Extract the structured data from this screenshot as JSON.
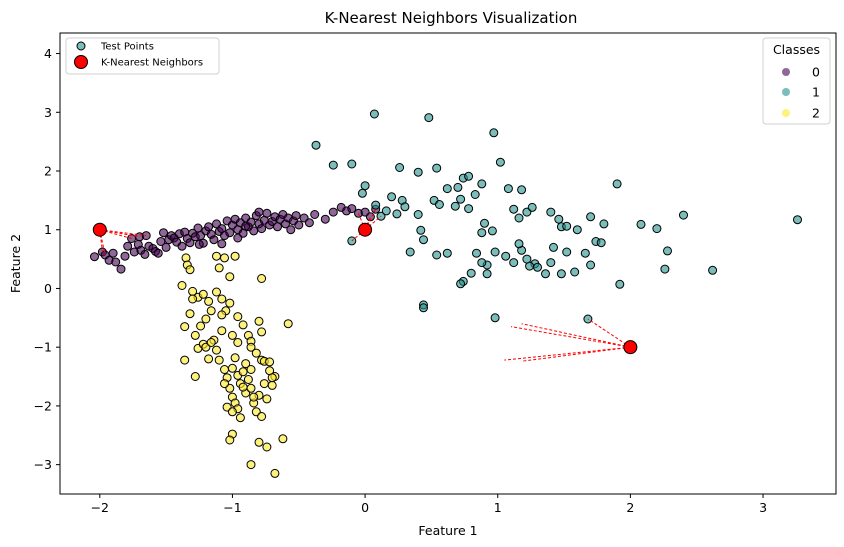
{
  "chart_data": {
    "type": "scatter",
    "title": "K-Nearest Neighbors Visualization",
    "xlabel": "Feature 1",
    "ylabel": "Feature 2",
    "xlim": [
      -2.3,
      3.55
    ],
    "ylim": [
      -3.5,
      4.35
    ],
    "xticks": [
      -2,
      -1,
      0,
      1,
      2,
      3
    ],
    "yticks": [
      -3,
      -2,
      -1,
      0,
      1,
      2,
      3,
      4
    ],
    "grid": false,
    "class_colors": {
      "0": "#440154",
      "1": "#21918c",
      "2": "#fde725"
    },
    "test_point_color": "#ff0000",
    "neighbor_line_color": "#ff0000",
    "legend_markers": {
      "location": "upper left",
      "entries": [
        "Test Points",
        "K-Nearest Neighbors"
      ]
    },
    "legend_classes": {
      "location": "upper right",
      "title": "Classes",
      "entries": [
        "0",
        "1",
        "2"
      ]
    },
    "series": [
      {
        "class": "0",
        "points": [
          [
            -2.04,
            0.54
          ],
          [
            -1.98,
            0.62
          ],
          [
            -1.96,
            0.57
          ],
          [
            -1.93,
            0.48
          ],
          [
            -1.88,
            0.45
          ],
          [
            -1.84,
            0.33
          ],
          [
            -1.81,
            0.55
          ],
          [
            -1.79,
            0.72
          ],
          [
            -1.76,
            0.85
          ],
          [
            -1.74,
            0.62
          ],
          [
            -1.71,
            0.75
          ],
          [
            -1.7,
            0.88
          ],
          [
            -1.69,
            0.65
          ],
          [
            -1.66,
            0.58
          ],
          [
            -1.65,
            0.9
          ],
          [
            -1.63,
            0.72
          ],
          [
            -1.6,
            0.68
          ],
          [
            -1.58,
            0.63
          ],
          [
            -1.54,
            0.8
          ],
          [
            -1.52,
            0.95
          ],
          [
            -1.5,
            0.7
          ],
          [
            -1.48,
            0.83
          ],
          [
            -1.46,
            0.9
          ],
          [
            -1.44,
            0.86
          ],
          [
            -1.42,
            0.79
          ],
          [
            -1.4,
            0.93
          ],
          [
            -1.38,
            0.72
          ],
          [
            -1.36,
            0.96
          ],
          [
            -1.34,
            0.85
          ],
          [
            -1.32,
            0.78
          ],
          [
            -1.3,
            0.94
          ],
          [
            -1.28,
            0.88
          ],
          [
            -1.26,
            1.03
          ],
          [
            -1.24,
            0.9
          ],
          [
            -1.22,
            0.77
          ],
          [
            -1.2,
            0.98
          ],
          [
            -1.18,
            1.05
          ],
          [
            -1.16,
            0.92
          ],
          [
            -1.14,
            0.83
          ],
          [
            -1.12,
            1.1
          ],
          [
            -1.1,
            0.97
          ],
          [
            -1.08,
            1.02
          ],
          [
            -1.06,
            0.9
          ],
          [
            -1.04,
            1.15
          ],
          [
            -1.02,
            0.95
          ],
          [
            -1.0,
            1.08
          ],
          [
            -0.98,
            1.18
          ],
          [
            -0.96,
            1.0
          ],
          [
            -0.94,
            1.12
          ],
          [
            -0.92,
            0.94
          ],
          [
            -0.9,
            1.2
          ],
          [
            -0.88,
            1.05
          ],
          [
            -0.86,
            1.13
          ],
          [
            -0.84,
            0.98
          ],
          [
            -0.82,
            1.24
          ],
          [
            -0.8,
            1.1
          ],
          [
            -0.78,
            1.02
          ],
          [
            -0.76,
            1.16
          ],
          [
            -0.74,
            1.28
          ],
          [
            -0.72,
            1.08
          ],
          [
            -0.7,
            1.14
          ],
          [
            -0.68,
            1.22
          ],
          [
            -0.66,
            1.05
          ],
          [
            -0.64,
            1.18
          ],
          [
            -0.62,
            1.26
          ],
          [
            -0.6,
            1.1
          ],
          [
            -0.58,
            1.2
          ],
          [
            -0.56,
            1.0
          ],
          [
            -0.54,
            1.15
          ],
          [
            -0.52,
            1.24
          ],
          [
            -0.5,
            1.08
          ],
          [
            -0.46,
            1.2
          ],
          [
            -0.42,
            1.12
          ],
          [
            -0.38,
            1.26
          ],
          [
            -0.3,
            1.18
          ],
          [
            -0.24,
            1.3
          ],
          [
            -0.18,
            1.38
          ],
          [
            -0.14,
            1.32
          ],
          [
            -0.1,
            1.36
          ],
          [
            -0.05,
            1.28
          ],
          [
            0.0,
            1.3
          ],
          [
            0.04,
            1.22
          ],
          [
            0.08,
            1.35
          ],
          [
            -0.8,
            1.3
          ],
          [
            -0.9,
            1.06
          ],
          [
            -1.25,
            0.75
          ],
          [
            -1.08,
            0.76
          ],
          [
            -1.56,
            0.6
          ],
          [
            -1.9,
            0.6
          ],
          [
            -0.96,
            0.86
          ]
        ]
      },
      {
        "class": "1",
        "points": [
          [
            0.07,
            2.97
          ],
          [
            0.48,
            2.91
          ],
          [
            -0.37,
            2.44
          ],
          [
            0.97,
            2.65
          ],
          [
            -0.24,
            2.1
          ],
          [
            -0.1,
            2.12
          ],
          [
            0.26,
            2.06
          ],
          [
            0.4,
            1.98
          ],
          [
            0.54,
            2.05
          ],
          [
            0.74,
            1.88
          ],
          [
            0.78,
            1.91
          ],
          [
            0.88,
            1.78
          ],
          [
            1.02,
            2.15
          ],
          [
            0.7,
            1.72
          ],
          [
            0.83,
            1.6
          ],
          [
            0.62,
            1.7
          ],
          [
            0.0,
            1.75
          ],
          [
            -0.02,
            1.62
          ],
          [
            0.08,
            1.42
          ],
          [
            0.2,
            1.56
          ],
          [
            0.28,
            1.5
          ],
          [
            0.3,
            1.39
          ],
          [
            0.24,
            1.27
          ],
          [
            0.4,
            1.26
          ],
          [
            0.52,
            1.5
          ],
          [
            0.56,
            1.43
          ],
          [
            0.68,
            1.4
          ],
          [
            0.78,
            1.36
          ],
          [
            0.72,
            1.52
          ],
          [
            0.9,
            1.11
          ],
          [
            0.88,
            0.95
          ],
          [
            0.96,
            0.98
          ],
          [
            1.08,
            1.7
          ],
          [
            1.12,
            1.35
          ],
          [
            1.16,
            1.2
          ],
          [
            1.18,
            1.68
          ],
          [
            1.22,
            1.3
          ],
          [
            1.26,
            1.38
          ],
          [
            1.4,
            1.3
          ],
          [
            1.46,
            1.18
          ],
          [
            1.48,
            1.05
          ],
          [
            1.52,
            1.06
          ],
          [
            1.6,
            1.0
          ],
          [
            1.7,
            1.22
          ],
          [
            1.74,
            0.8
          ],
          [
            1.78,
            0.78
          ],
          [
            1.8,
            1.1
          ],
          [
            1.9,
            1.78
          ],
          [
            2.08,
            1.09
          ],
          [
            2.2,
            1.02
          ],
          [
            2.28,
            0.64
          ],
          [
            2.4,
            1.25
          ],
          [
            2.62,
            0.31
          ],
          [
            3.26,
            1.17
          ],
          [
            2.26,
            0.33
          ],
          [
            1.92,
            0.07
          ],
          [
            1.66,
            0.6
          ],
          [
            1.58,
            0.28
          ],
          [
            1.52,
            0.62
          ],
          [
            1.42,
            0.7
          ],
          [
            1.4,
            0.44
          ],
          [
            1.36,
            0.25
          ],
          [
            1.28,
            0.42
          ],
          [
            1.24,
            0.38
          ],
          [
            1.22,
            0.5
          ],
          [
            1.18,
            0.65
          ],
          [
            1.16,
            0.76
          ],
          [
            1.12,
            0.44
          ],
          [
            1.06,
            0.55
          ],
          [
            0.98,
            0.62
          ],
          [
            0.92,
            0.4
          ],
          [
            0.88,
            0.44
          ],
          [
            0.84,
            0.6
          ],
          [
            0.8,
            0.26
          ],
          [
            0.74,
            0.12
          ],
          [
            0.72,
            0.08
          ],
          [
            0.62,
            0.6
          ],
          [
            0.54,
            0.57
          ],
          [
            0.44,
            0.83
          ],
          [
            0.42,
            0.99
          ],
          [
            0.34,
            0.62
          ],
          [
            0.44,
            -0.28
          ],
          [
            0.44,
            -0.33
          ],
          [
            0.98,
            -0.5
          ],
          [
            1.68,
            -0.52
          ],
          [
            -0.1,
            0.81
          ],
          [
            0.12,
            1.23
          ],
          [
            0.16,
            1.32
          ],
          [
            0.92,
            0.25
          ],
          [
            1.3,
            0.36
          ],
          [
            1.48,
            0.25
          ],
          [
            1.7,
            0.4
          ]
        ]
      },
      {
        "class": "2",
        "points": [
          [
            -1.35,
            0.52
          ],
          [
            -1.34,
            0.4
          ],
          [
            -1.32,
            0.32
          ],
          [
            -1.12,
            0.55
          ],
          [
            -1.1,
            0.35
          ],
          [
            -1.06,
            0.52
          ],
          [
            -1.02,
            0.2
          ],
          [
            -0.98,
            0.55
          ],
          [
            -0.78,
            0.17
          ],
          [
            -1.38,
            0.05
          ],
          [
            -1.3,
            -0.05
          ],
          [
            -1.26,
            -0.15
          ],
          [
            -1.22,
            -0.1
          ],
          [
            -1.18,
            -0.22
          ],
          [
            -1.12,
            -0.06
          ],
          [
            -1.08,
            -0.18
          ],
          [
            -1.05,
            -0.38
          ],
          [
            -1.02,
            -0.25
          ],
          [
            -0.96,
            -0.48
          ],
          [
            -0.92,
            -0.62
          ],
          [
            -0.88,
            -0.8
          ],
          [
            -0.86,
            -0.9
          ],
          [
            -0.8,
            -0.56
          ],
          [
            -0.78,
            -0.74
          ],
          [
            -0.58,
            -0.6
          ],
          [
            -1.3,
            -0.18
          ],
          [
            -1.32,
            -0.43
          ],
          [
            -1.36,
            -0.65
          ],
          [
            -1.28,
            -0.8
          ],
          [
            -1.26,
            -1.02
          ],
          [
            -1.22,
            -0.95
          ],
          [
            -1.18,
            -1.2
          ],
          [
            -1.14,
            -0.88
          ],
          [
            -1.12,
            -1.05
          ],
          [
            -1.1,
            -1.22
          ],
          [
            -1.06,
            -1.38
          ],
          [
            -1.04,
            -1.52
          ],
          [
            -1.0,
            -1.36
          ],
          [
            -0.98,
            -1.18
          ],
          [
            -0.96,
            -1.48
          ],
          [
            -0.94,
            -1.62
          ],
          [
            -0.92,
            -1.42
          ],
          [
            -0.9,
            -1.78
          ],
          [
            -0.88,
            -1.55
          ],
          [
            -0.86,
            -1.7
          ],
          [
            -0.84,
            -1.95
          ],
          [
            -0.82,
            -2.1
          ],
          [
            -0.8,
            -1.82
          ],
          [
            -0.78,
            -2.18
          ],
          [
            -0.76,
            -1.62
          ],
          [
            -0.74,
            -1.88
          ],
          [
            -0.72,
            -1.4
          ],
          [
            -0.7,
            -1.65
          ],
          [
            -0.68,
            -1.5
          ],
          [
            -1.02,
            -1.7
          ],
          [
            -1.0,
            -1.85
          ],
          [
            -0.98,
            -1.95
          ],
          [
            -0.96,
            -2.05
          ],
          [
            -0.94,
            -2.2
          ],
          [
            -0.92,
            -1.68
          ],
          [
            -1.04,
            -2.02
          ],
          [
            -1.0,
            -2.48
          ],
          [
            -1.02,
            -2.58
          ],
          [
            -0.8,
            -2.62
          ],
          [
            -0.74,
            -2.7
          ],
          [
            -0.62,
            -2.56
          ],
          [
            -0.86,
            -3.0
          ],
          [
            -0.68,
            -3.15
          ],
          [
            -1.36,
            -1.22
          ],
          [
            -1.28,
            -1.5
          ],
          [
            -1.2,
            -1.0
          ],
          [
            -1.16,
            -0.92
          ],
          [
            -0.86,
            -1.0
          ],
          [
            -0.82,
            -1.1
          ],
          [
            -0.78,
            -1.22
          ],
          [
            -0.76,
            -1.24
          ],
          [
            -0.9,
            -1.28
          ],
          [
            -1.0,
            -0.8
          ],
          [
            -0.96,
            -0.92
          ],
          [
            -1.08,
            -0.72
          ],
          [
            -1.16,
            -0.38
          ],
          [
            -1.08,
            -0.45
          ],
          [
            -1.2,
            -0.52
          ],
          [
            -1.24,
            -0.64
          ],
          [
            -1.06,
            -1.62
          ],
          [
            -0.86,
            -1.38
          ],
          [
            -0.72,
            -1.25
          ],
          [
            -0.7,
            -1.52
          ],
          [
            -1.0,
            -2.1
          ],
          [
            -0.84,
            -1.85
          ]
        ]
      }
    ],
    "test_points": [
      [
        -2.0,
        1.0
      ],
      [
        0.0,
        1.0
      ],
      [
        2.0,
        -1.0
      ]
    ],
    "neighbors": [
      [
        [
          -1.7,
          0.88
        ],
        [
          -1.76,
          0.85
        ],
        [
          -1.98,
          0.62
        ],
        [
          -1.96,
          0.57
        ],
        [
          -1.65,
          0.9
        ]
      ],
      [
        [
          0.04,
          1.22
        ],
        [
          -0.1,
          0.81
        ],
        [
          -0.05,
          1.28
        ],
        [
          0.08,
          1.35
        ],
        [
          0.12,
          1.23
        ]
      ],
      [
        [
          1.68,
          -0.52
        ],
        [
          1.1,
          -0.65
        ],
        [
          1.18,
          -0.6
        ],
        [
          1.05,
          -1.22
        ],
        [
          1.18,
          -1.24
        ]
      ]
    ]
  }
}
